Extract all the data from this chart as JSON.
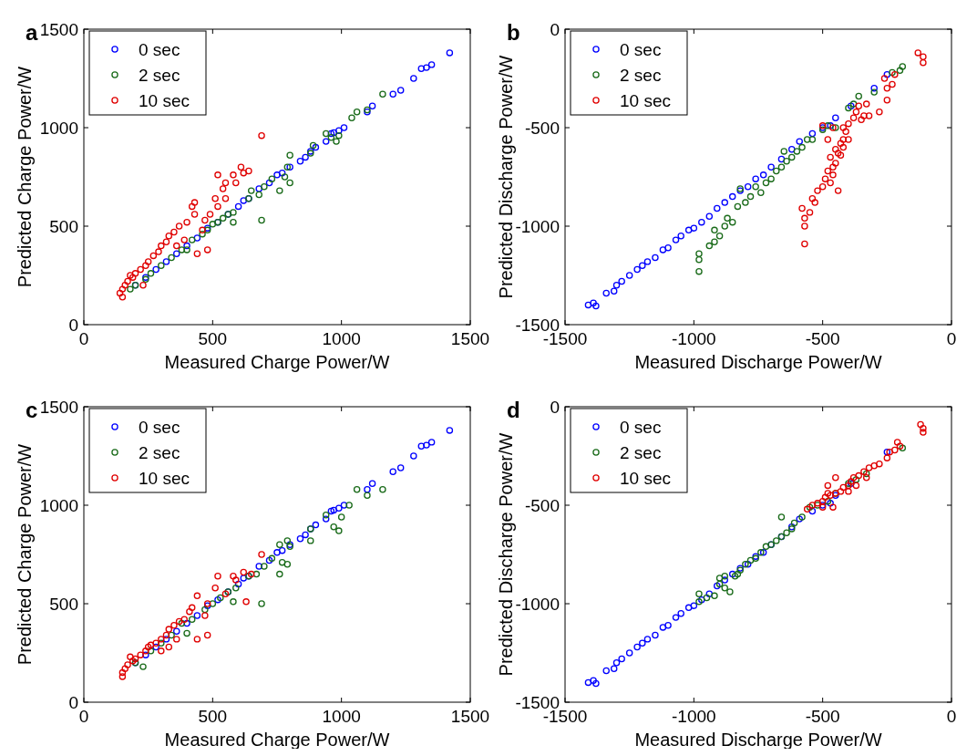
{
  "chart_data": [
    {
      "type": "scatter",
      "title": "a",
      "xlabel": "Measured Charge  Power/W",
      "ylabel": "Predicted Charge Power/W",
      "xlim": [
        0,
        1500
      ],
      "ylim": [
        0,
        1500
      ],
      "xticks": [
        0,
        500,
        1000,
        1500
      ],
      "yticks": [
        0,
        500,
        1000,
        1500
      ],
      "legend": "top left",
      "marker": "circle",
      "series": [
        {
          "name": "0 sec",
          "color": "#0000ff",
          "x": [
            1420,
            1350,
            1330,
            1310,
            1280,
            1230,
            1200,
            1120,
            1100,
            1010,
            990,
            970,
            960,
            940,
            900,
            880,
            860,
            840,
            800,
            770,
            750,
            720,
            680,
            640,
            620,
            600,
            560,
            520,
            480,
            440,
            400,
            360,
            320,
            280,
            240,
            200
          ],
          "values": [
            1380,
            1320,
            1305,
            1300,
            1250,
            1190,
            1170,
            1110,
            1080,
            1000,
            985,
            975,
            970,
            930,
            900,
            880,
            850,
            830,
            800,
            770,
            760,
            720,
            690,
            640,
            630,
            600,
            560,
            520,
            490,
            440,
            400,
            360,
            320,
            280,
            240,
            200
          ]
        },
        {
          "name": "2 sec",
          "color": "#1a6b1a",
          "x": [
            1160,
            1100,
            1060,
            1040,
            990,
            980,
            960,
            940,
            890,
            880,
            800,
            790,
            780,
            800,
            760,
            730,
            700,
            680,
            690,
            650,
            640,
            580,
            580,
            560,
            540,
            520,
            500,
            480,
            460,
            420,
            400,
            380,
            340,
            300,
            260,
            240,
            200,
            180
          ],
          "values": [
            1170,
            1090,
            1080,
            1050,
            960,
            930,
            950,
            970,
            910,
            870,
            860,
            800,
            750,
            720,
            680,
            740,
            700,
            660,
            530,
            680,
            640,
            570,
            520,
            560,
            540,
            520,
            510,
            480,
            460,
            430,
            380,
            380,
            340,
            300,
            260,
            230,
            200,
            180
          ]
        },
        {
          "name": "10 sec",
          "color": "#e00000",
          "x": [
            690,
            610,
            640,
            580,
            620,
            550,
            590,
            520,
            540,
            510,
            520,
            550,
            490,
            470,
            460,
            480,
            440,
            430,
            420,
            430,
            400,
            370,
            350,
            330,
            320,
            300,
            290,
            270,
            250,
            240,
            220,
            200,
            190,
            170,
            160,
            150,
            140,
            150,
            180,
            230,
            360,
            390
          ],
          "values": [
            960,
            800,
            780,
            760,
            770,
            720,
            720,
            760,
            690,
            640,
            600,
            640,
            560,
            530,
            480,
            380,
            360,
            620,
            600,
            560,
            520,
            500,
            470,
            450,
            420,
            400,
            370,
            350,
            320,
            300,
            280,
            260,
            240,
            220,
            200,
            180,
            160,
            140,
            250,
            200,
            400,
            430
          ]
        }
      ]
    },
    {
      "type": "scatter",
      "title": "b",
      "xlabel": "Measured Discharge  Power/W",
      "ylabel": "Predicted Discharge Power/W",
      "xlim": [
        -1500,
        0
      ],
      "ylim": [
        -1500,
        0
      ],
      "xticks": [
        -1500,
        -1000,
        -500,
        0
      ],
      "yticks": [
        -1500,
        -1000,
        -500,
        0
      ],
      "legend": "top left",
      "marker": "circle",
      "series": [
        {
          "name": "0 sec",
          "color": "#0000ff",
          "x": [
            -1410,
            -1390,
            -1380,
            -1340,
            -1310,
            -1300,
            -1280,
            -1250,
            -1220,
            -1200,
            -1180,
            -1150,
            -1120,
            -1100,
            -1070,
            -1050,
            -1020,
            -1000,
            -970,
            -940,
            -910,
            -880,
            -850,
            -820,
            -790,
            -760,
            -730,
            -700,
            -660,
            -620,
            -590,
            -540,
            -500,
            -470,
            -450,
            -390,
            -300,
            -250
          ],
          "values": [
            -1400,
            -1390,
            -1405,
            -1340,
            -1330,
            -1300,
            -1280,
            -1250,
            -1220,
            -1200,
            -1180,
            -1160,
            -1120,
            -1110,
            -1070,
            -1050,
            -1020,
            -1010,
            -980,
            -950,
            -910,
            -880,
            -850,
            -820,
            -800,
            -760,
            -740,
            -700,
            -660,
            -610,
            -570,
            -530,
            -500,
            -490,
            -450,
            -390,
            -300,
            -230
          ]
        },
        {
          "name": "2 sec",
          "color": "#1a6b1a",
          "x": [
            -980,
            -980,
            -980,
            -940,
            -920,
            -900,
            -920,
            -880,
            -870,
            -850,
            -830,
            -800,
            -780,
            -760,
            -740,
            -720,
            -700,
            -680,
            -660,
            -640,
            -620,
            -600,
            -580,
            -560,
            -540,
            -500,
            -480,
            -450,
            -400,
            -380,
            -360,
            -300,
            -230,
            -200,
            -190,
            -650,
            -820
          ],
          "values": [
            -1140,
            -1170,
            -1230,
            -1100,
            -1080,
            -1050,
            -1020,
            -1000,
            -960,
            -980,
            -900,
            -880,
            -850,
            -800,
            -830,
            -780,
            -760,
            -720,
            -700,
            -670,
            -650,
            -620,
            -600,
            -560,
            -560,
            -510,
            -490,
            -500,
            -400,
            -380,
            -340,
            -320,
            -220,
            -210,
            -190,
            -620,
            -810
          ]
        },
        {
          "name": "10 sec",
          "color": "#e00000",
          "x": [
            -570,
            -570,
            -570,
            -580,
            -550,
            -530,
            -540,
            -520,
            -500,
            -490,
            -470,
            -480,
            -460,
            -450,
            -470,
            -440,
            -450,
            -430,
            -420,
            -430,
            -420,
            -400,
            -410,
            -420,
            -400,
            -380,
            -370,
            -350,
            -340,
            -320,
            -360,
            -330,
            -280,
            -250,
            -250,
            -230,
            -220,
            -260,
            -130,
            -110,
            -110,
            -500,
            -460,
            -480,
            -460,
            -440
          ],
          "values": [
            -1090,
            -1000,
            -960,
            -910,
            -930,
            -880,
            -860,
            -820,
            -800,
            -760,
            -780,
            -720,
            -700,
            -680,
            -650,
            -630,
            -610,
            -640,
            -600,
            -580,
            -560,
            -560,
            -520,
            -500,
            -480,
            -450,
            -420,
            -460,
            -440,
            -440,
            -390,
            -380,
            -420,
            -360,
            -300,
            -280,
            -230,
            -250,
            -120,
            -170,
            -140,
            -490,
            -500,
            -560,
            -740,
            -820
          ]
        }
      ]
    },
    {
      "type": "scatter",
      "title": "c",
      "xlabel": "Measured Charge  Power/W",
      "ylabel": "Predicted Charge Power/W",
      "xlim": [
        0,
        1500
      ],
      "ylim": [
        0,
        1500
      ],
      "xticks": [
        0,
        500,
        1000,
        1500
      ],
      "yticks": [
        0,
        500,
        1000,
        1500
      ],
      "legend": "top left",
      "marker": "circle",
      "series": [
        {
          "name": "0 sec",
          "color": "#0000ff",
          "x": [
            1420,
            1350,
            1330,
            1310,
            1280,
            1230,
            1200,
            1120,
            1100,
            1010,
            990,
            970,
            960,
            940,
            900,
            880,
            860,
            840,
            800,
            770,
            750,
            720,
            680,
            640,
            620,
            600,
            560,
            520,
            480,
            440,
            400,
            360,
            320,
            280,
            240,
            200
          ],
          "values": [
            1380,
            1320,
            1305,
            1300,
            1250,
            1190,
            1170,
            1110,
            1080,
            1000,
            985,
            975,
            970,
            930,
            900,
            880,
            850,
            830,
            800,
            770,
            760,
            720,
            690,
            640,
            630,
            600,
            560,
            520,
            490,
            440,
            400,
            360,
            320,
            280,
            240,
            200
          ]
        },
        {
          "name": "2 sec",
          "color": "#1a6b1a",
          "x": [
            1160,
            1100,
            1060,
            1030,
            1000,
            990,
            970,
            940,
            880,
            880,
            800,
            790,
            760,
            790,
            760,
            770,
            730,
            700,
            690,
            670,
            640,
            580,
            590,
            560,
            530,
            500,
            470,
            420,
            400,
            380,
            340,
            300,
            260,
            230,
            200
          ],
          "values": [
            1080,
            1050,
            1080,
            1000,
            940,
            870,
            890,
            950,
            880,
            820,
            790,
            820,
            800,
            700,
            650,
            710,
            730,
            690,
            500,
            650,
            640,
            510,
            580,
            560,
            530,
            500,
            470,
            420,
            350,
            400,
            340,
            300,
            260,
            180,
            200
          ]
        },
        {
          "name": "10 sec",
          "color": "#e00000",
          "x": [
            690,
            620,
            650,
            580,
            630,
            520,
            590,
            510,
            550,
            480,
            440,
            470,
            480,
            440,
            420,
            410,
            390,
            370,
            350,
            330,
            320,
            300,
            280,
            260,
            250,
            240,
            220,
            200,
            190,
            170,
            160,
            150,
            150,
            180,
            300,
            330,
            360
          ],
          "values": [
            750,
            660,
            650,
            640,
            510,
            640,
            620,
            580,
            550,
            500,
            540,
            440,
            340,
            320,
            480,
            460,
            420,
            410,
            390,
            370,
            340,
            320,
            300,
            290,
            280,
            260,
            240,
            220,
            210,
            190,
            170,
            150,
            130,
            230,
            260,
            280,
            320
          ]
        }
      ]
    },
    {
      "type": "scatter",
      "title": "d",
      "xlabel": "Measured Discharge  Power/W",
      "ylabel": "Predicted Discharge Power/W",
      "xlim": [
        -1500,
        0
      ],
      "ylim": [
        -1500,
        0
      ],
      "xticks": [
        -1500,
        -1000,
        -500,
        0
      ],
      "yticks": [
        -1500,
        -1000,
        -500,
        0
      ],
      "legend": "top left",
      "marker": "circle",
      "series": [
        {
          "name": "0 sec",
          "color": "#0000ff",
          "x": [
            -1410,
            -1390,
            -1380,
            -1340,
            -1310,
            -1300,
            -1280,
            -1250,
            -1220,
            -1200,
            -1180,
            -1150,
            -1120,
            -1100,
            -1070,
            -1050,
            -1020,
            -1000,
            -970,
            -940,
            -910,
            -880,
            -850,
            -820,
            -790,
            -760,
            -730,
            -700,
            -660,
            -620,
            -590,
            -540,
            -500,
            -470,
            -450,
            -390,
            -250
          ],
          "values": [
            -1400,
            -1390,
            -1405,
            -1340,
            -1330,
            -1300,
            -1280,
            -1250,
            -1220,
            -1200,
            -1180,
            -1160,
            -1120,
            -1110,
            -1070,
            -1050,
            -1020,
            -1010,
            -980,
            -950,
            -910,
            -880,
            -850,
            -820,
            -800,
            -760,
            -740,
            -700,
            -660,
            -610,
            -570,
            -530,
            -500,
            -490,
            -450,
            -390,
            -230
          ]
        },
        {
          "name": "2 sec",
          "color": "#1a6b1a",
          "x": [
            -980,
            -980,
            -950,
            -920,
            -900,
            -880,
            -860,
            -840,
            -820,
            -800,
            -780,
            -760,
            -740,
            -720,
            -700,
            -680,
            -660,
            -640,
            -620,
            -610,
            -660,
            -580,
            -550,
            -520,
            -480,
            -450,
            -400,
            -370,
            -330,
            -190,
            -880,
            -830,
            -900
          ],
          "values": [
            -950,
            -990,
            -970,
            -960,
            -900,
            -920,
            -940,
            -860,
            -830,
            -800,
            -780,
            -770,
            -740,
            -710,
            -700,
            -680,
            -660,
            -640,
            -620,
            -590,
            -560,
            -560,
            -510,
            -500,
            -480,
            -440,
            -390,
            -370,
            -340,
            -210,
            -860,
            -850,
            -870
          ]
        },
        {
          "name": "10 sec",
          "color": "#e00000",
          "x": [
            -560,
            -540,
            -520,
            -500,
            -490,
            -470,
            -450,
            -430,
            -420,
            -400,
            -390,
            -380,
            -360,
            -340,
            -320,
            -300,
            -280,
            -250,
            -240,
            -220,
            -210,
            -200,
            -120,
            -110,
            -110,
            -480,
            -450,
            -500,
            -460,
            -400,
            -370,
            -330,
            -480
          ],
          "values": [
            -520,
            -500,
            -490,
            -480,
            -460,
            -450,
            -440,
            -430,
            -410,
            -400,
            -380,
            -360,
            -350,
            -330,
            -310,
            -300,
            -290,
            -260,
            -230,
            -220,
            -180,
            -200,
            -90,
            -110,
            -130,
            -400,
            -360,
            -510,
            -510,
            -430,
            -400,
            -360,
            -440
          ]
        }
      ]
    }
  ]
}
